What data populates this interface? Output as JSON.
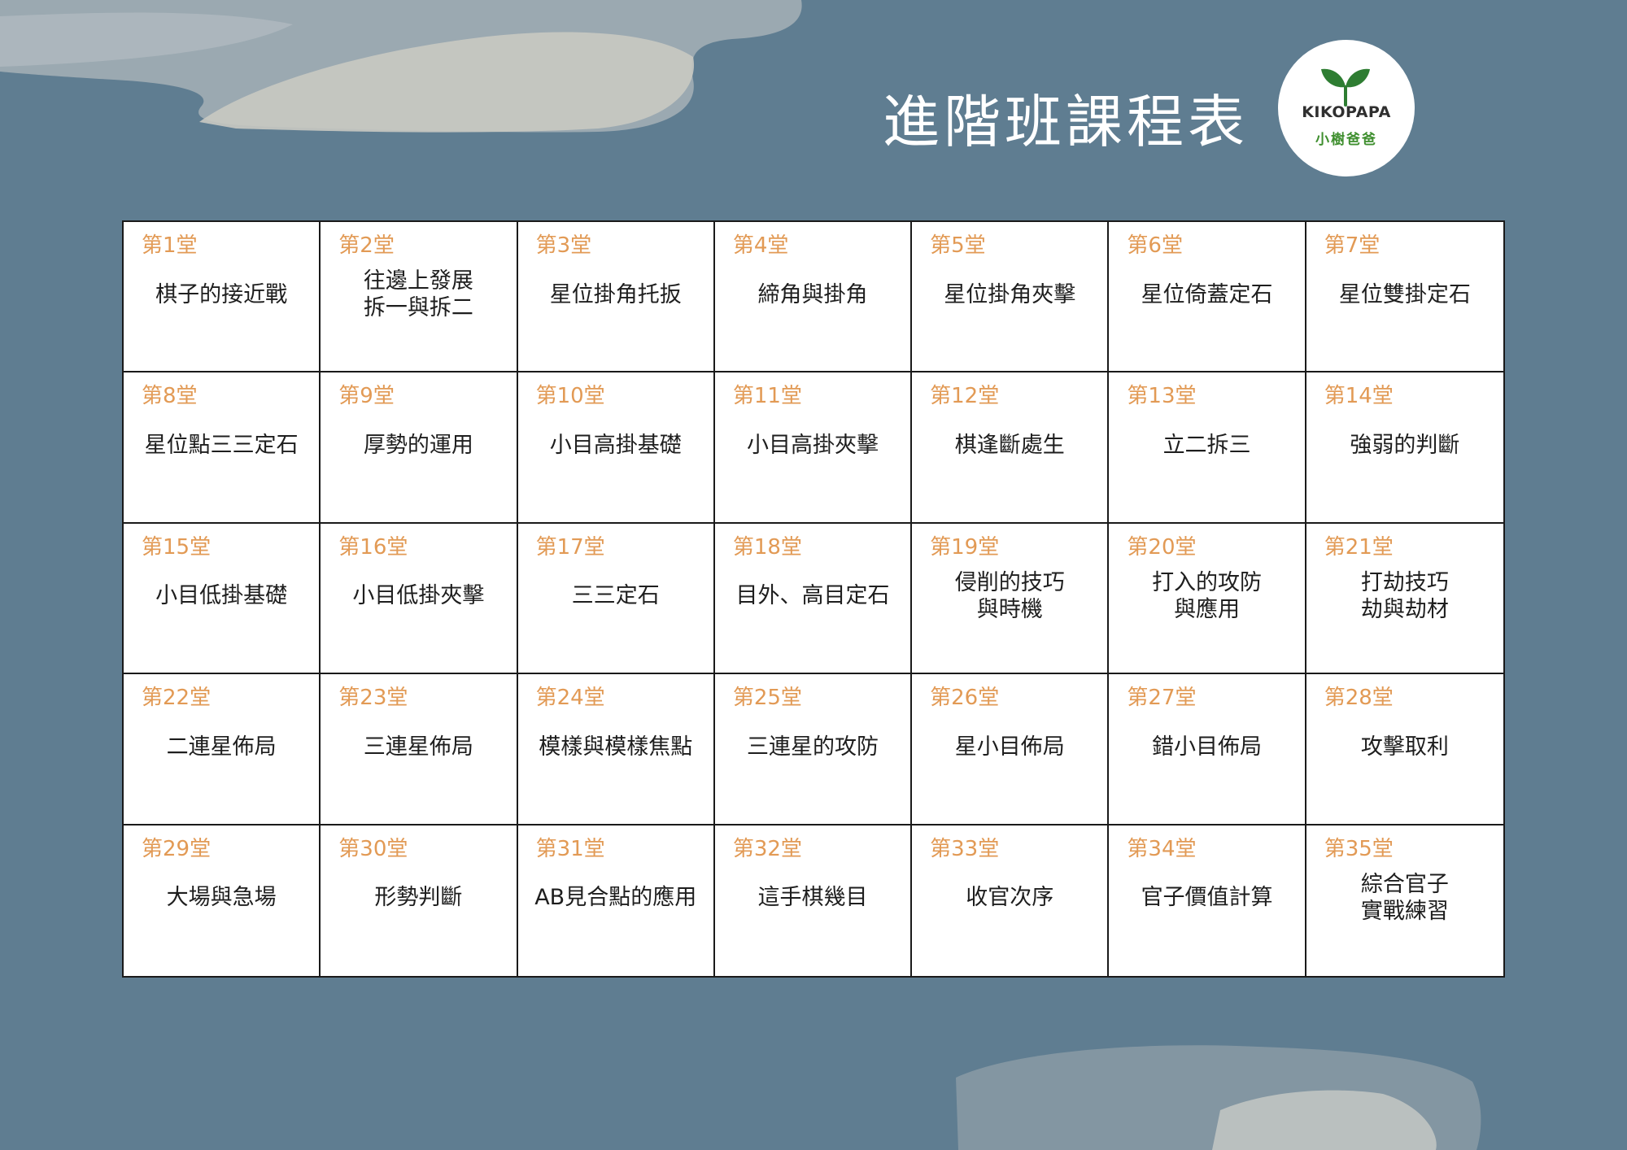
{
  "header": {
    "title": "進階班課程表"
  },
  "logo": {
    "brand": "KIKOPAPA",
    "brand_zh": "小樹爸爸",
    "leaf_color": "#2e7d32",
    "icon": "sprout-icon"
  },
  "colors": {
    "background": "#5f7d91",
    "lesson_number": "#e29a55",
    "lesson_title": "#1e1e1e",
    "grid_line": "#1a1a1a"
  },
  "lessons": [
    {
      "no": "第1堂",
      "lines": [
        "棋子的接近戰"
      ]
    },
    {
      "no": "第2堂",
      "lines": [
        "往邊上發展",
        "拆一與拆二"
      ]
    },
    {
      "no": "第3堂",
      "lines": [
        "星位掛角托扳"
      ]
    },
    {
      "no": "第4堂",
      "lines": [
        "締角與掛角"
      ]
    },
    {
      "no": "第5堂",
      "lines": [
        "星位掛角夾擊"
      ]
    },
    {
      "no": "第6堂",
      "lines": [
        "星位倚蓋定石"
      ]
    },
    {
      "no": "第7堂",
      "lines": [
        "星位雙掛定石"
      ]
    },
    {
      "no": "第8堂",
      "lines": [
        "星位點三三定石"
      ]
    },
    {
      "no": "第9堂",
      "lines": [
        "厚勢的運用"
      ]
    },
    {
      "no": "第10堂",
      "lines": [
        "小目高掛基礎"
      ]
    },
    {
      "no": "第11堂",
      "lines": [
        "小目高掛夾擊"
      ]
    },
    {
      "no": "第12堂",
      "lines": [
        "棋逢斷處生"
      ]
    },
    {
      "no": "第13堂",
      "lines": [
        "立二拆三"
      ]
    },
    {
      "no": "第14堂",
      "lines": [
        "強弱的判斷"
      ]
    },
    {
      "no": "第15堂",
      "lines": [
        "小目低掛基礎"
      ]
    },
    {
      "no": "第16堂",
      "lines": [
        "小目低掛夾擊"
      ]
    },
    {
      "no": "第17堂",
      "lines": [
        "三三定石"
      ]
    },
    {
      "no": "第18堂",
      "lines": [
        "目外、高目定石"
      ]
    },
    {
      "no": "第19堂",
      "lines": [
        "侵削的技巧",
        "與時機"
      ]
    },
    {
      "no": "第20堂",
      "lines": [
        "打入的攻防",
        "與應用"
      ]
    },
    {
      "no": "第21堂",
      "lines": [
        "打劫技巧",
        "劫與劫材"
      ]
    },
    {
      "no": "第22堂",
      "lines": [
        "二連星佈局"
      ]
    },
    {
      "no": "第23堂",
      "lines": [
        "三連星佈局"
      ]
    },
    {
      "no": "第24堂",
      "lines": [
        "模樣與模樣焦點"
      ]
    },
    {
      "no": "第25堂",
      "lines": [
        "三連星的攻防"
      ]
    },
    {
      "no": "第26堂",
      "lines": [
        "星小目佈局"
      ]
    },
    {
      "no": "第27堂",
      "lines": [
        "錯小目佈局"
      ]
    },
    {
      "no": "第28堂",
      "lines": [
        "攻擊取利"
      ]
    },
    {
      "no": "第29堂",
      "lines": [
        "大場與急場"
      ]
    },
    {
      "no": "第30堂",
      "lines": [
        "形勢判斷"
      ]
    },
    {
      "no": "第31堂",
      "lines": [
        "AB見合點的應用"
      ]
    },
    {
      "no": "第32堂",
      "lines": [
        "這手棋幾目"
      ]
    },
    {
      "no": "第33堂",
      "lines": [
        "收官次序"
      ]
    },
    {
      "no": "第34堂",
      "lines": [
        "官子價值計算"
      ]
    },
    {
      "no": "第35堂",
      "lines": [
        "綜合官子",
        "實戰練習"
      ]
    }
  ]
}
